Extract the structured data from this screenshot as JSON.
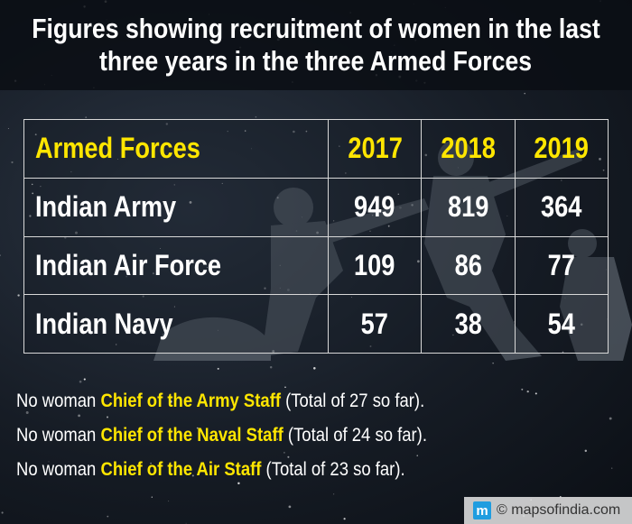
{
  "title": {
    "line1": "Figures showing recruitment of women in the last",
    "line2": "three years in the three Armed Forces"
  },
  "chart_data": {
    "type": "table",
    "columns": [
      "Armed Forces",
      "2017",
      "2018",
      "2019"
    ],
    "rows": [
      {
        "name": "Indian Army",
        "values": [
          "949",
          "819",
          "364"
        ]
      },
      {
        "name": "Indian Air Force",
        "values": [
          "109",
          "86",
          "77"
        ]
      },
      {
        "name": "Indian Navy",
        "values": [
          "57",
          "38",
          "54"
        ]
      }
    ]
  },
  "notes": [
    {
      "pre": "No woman ",
      "highlight": "Chief of the Army Staff",
      "post": " (Total of 27 so far)."
    },
    {
      "pre": "No woman ",
      "highlight": "Chief of the Naval Staff",
      "post": " (Total of 24 so far)."
    },
    {
      "pre": "No woman ",
      "highlight": "Chief of the Air Staff",
      "post": " (Total of 23 so far)."
    }
  ],
  "branding": {
    "logo_icon": "m",
    "text": "© mapsofindia.com"
  },
  "colors": {
    "highlight": "#ffe600",
    "text": "#ffffff",
    "background": "#161c25"
  }
}
